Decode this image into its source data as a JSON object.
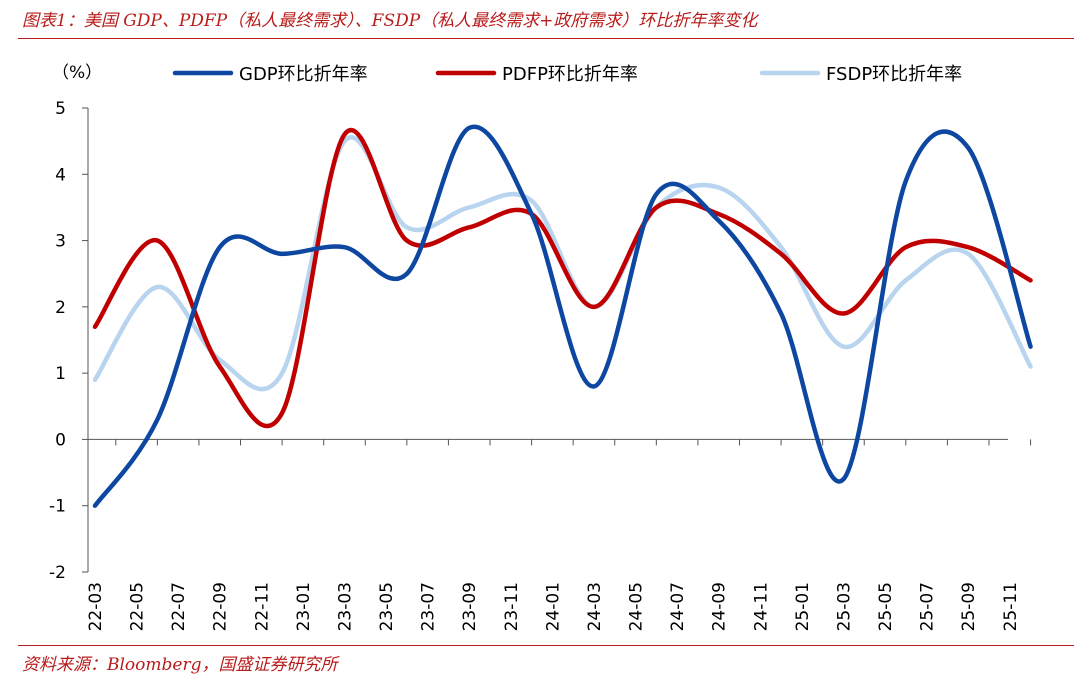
{
  "header": {
    "title": "图表1：美国 GDP、PDFP（私人最终需求）、FSDP（私人最终需求+政府需求）环比折年率变化"
  },
  "footer": {
    "source": "资料来源：Bloomberg，国盛证券研究所"
  },
  "chart_data": {
    "type": "line",
    "unit_label": "（%）",
    "ylim": [
      -2,
      5
    ],
    "yticks": [
      -2,
      -1,
      0,
      1,
      2,
      3,
      4,
      5
    ],
    "xlabels": [
      "22-03",
      "22-05",
      "22-07",
      "22-09",
      "22-11",
      "23-01",
      "23-03",
      "23-05",
      "23-07",
      "23-09",
      "23-11",
      "24-01",
      "24-03",
      "24-05",
      "24-07",
      "24-09",
      "24-11",
      "25-01",
      "25-03",
      "25-05",
      "25-07",
      "25-09",
      "25-11"
    ],
    "x": [
      "22-03",
      "22-06",
      "22-09",
      "22-12",
      "23-03",
      "23-06",
      "23-09",
      "23-12",
      "24-03",
      "24-06",
      "24-09",
      "24-12",
      "25-03",
      "25-06",
      "25-09",
      "25-12"
    ],
    "series": [
      {
        "name": "GDP环比折年率",
        "color": "#0d47a1",
        "values": [
          -1.0,
          0.3,
          2.9,
          2.8,
          2.9,
          2.5,
          4.7,
          3.4,
          0.8,
          3.7,
          3.3,
          1.9,
          -0.6,
          3.9,
          4.4,
          1.4
        ]
      },
      {
        "name": "PDFP环比折年率",
        "color": "#c00000",
        "values": [
          1.7,
          3.0,
          1.1,
          0.4,
          4.6,
          3.0,
          3.2,
          3.4,
          2.0,
          3.5,
          3.4,
          2.8,
          1.9,
          2.9,
          2.9,
          2.4
        ]
      },
      {
        "name": "FSDP环比折年率",
        "color": "#b8d4ee",
        "values": [
          0.9,
          2.3,
          1.2,
          1.0,
          4.5,
          3.2,
          3.5,
          3.6,
          2.0,
          3.5,
          3.8,
          2.9,
          1.4,
          2.4,
          2.8,
          1.1
        ]
      }
    ],
    "legend_position": "top",
    "grid": false
  }
}
